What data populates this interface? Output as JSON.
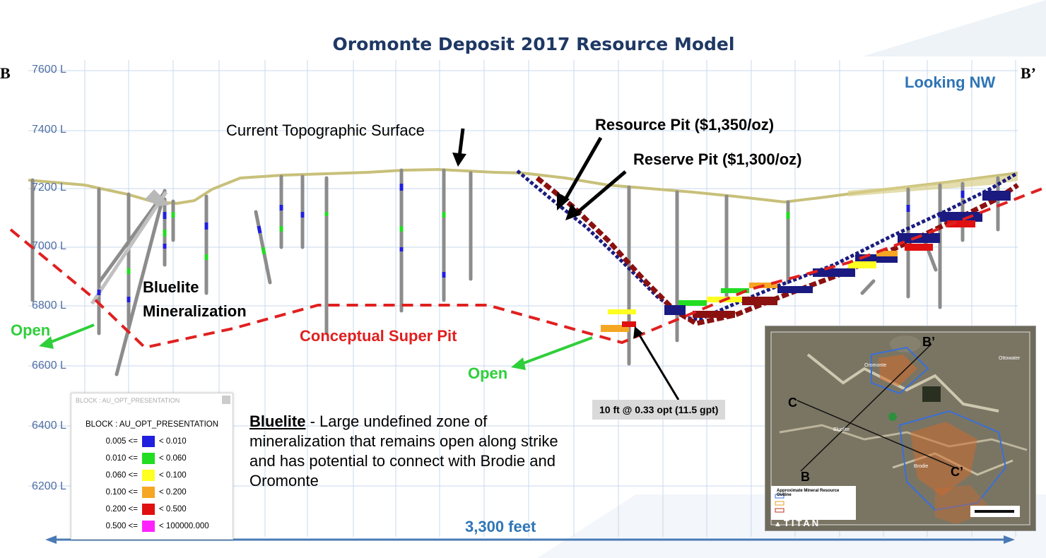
{
  "title": "Oromonte Deposit 2017 Resource Model",
  "section_start": "B",
  "section_end": "B’",
  "view_direction": "Looking NW",
  "elevations": [
    "7600 L",
    "7400 L",
    "7200 L",
    "7000 L",
    "6800 L",
    "6600 L",
    "6400 L",
    "6200 L"
  ],
  "labels": {
    "topo_surface": "Current Topographic Surface",
    "resource_pit": "Resource Pit ($1,350/oz)",
    "reserve_pit": "Reserve Pit ($1,300/oz)",
    "bluelite_line1": "Bluelite",
    "bluelite_line2": "Mineralization",
    "open_left": "Open",
    "open_right": "Open",
    "super_pit": "Conceptual Super Pit",
    "intercept": "10 ft @ 0.33 opt (11.5 gpt)",
    "length": "3,300 feet"
  },
  "description": {
    "name": "Bluelite",
    "text": " - Large undefined zone of mineralization that remains open along strike and has potential to connect with Brodie and Oromonte"
  },
  "legend": {
    "header": "BLOCK : AU_OPT_PRESENTATION",
    "title": "BLOCK : AU_OPT_PRESENTATION",
    "rows": [
      {
        "min": "0.005 <=",
        "max": "< 0.010",
        "color": "#1f1fe0"
      },
      {
        "min": "0.010 <=",
        "max": "< 0.060",
        "color": "#22dd22"
      },
      {
        "min": "0.060 <=",
        "max": "< 0.100",
        "color": "#ffff22"
      },
      {
        "min": "0.100 <=",
        "max": "< 0.200",
        "color": "#f5a623"
      },
      {
        "min": "0.200 <=",
        "max": "< 0.500",
        "color": "#e01010"
      },
      {
        "min": "0.500 <=",
        "max": "< 100000.000",
        "color": "#ff22ff"
      }
    ]
  },
  "inset": {
    "logo": "TITAN",
    "labels": [
      "B",
      "B’",
      "C",
      "C’"
    ],
    "place_names": [
      "Oromonte",
      "Bluelite",
      "Brodie",
      "Ottowater"
    ],
    "legend_title": "Approximate Mineral Resource Outline"
  }
}
